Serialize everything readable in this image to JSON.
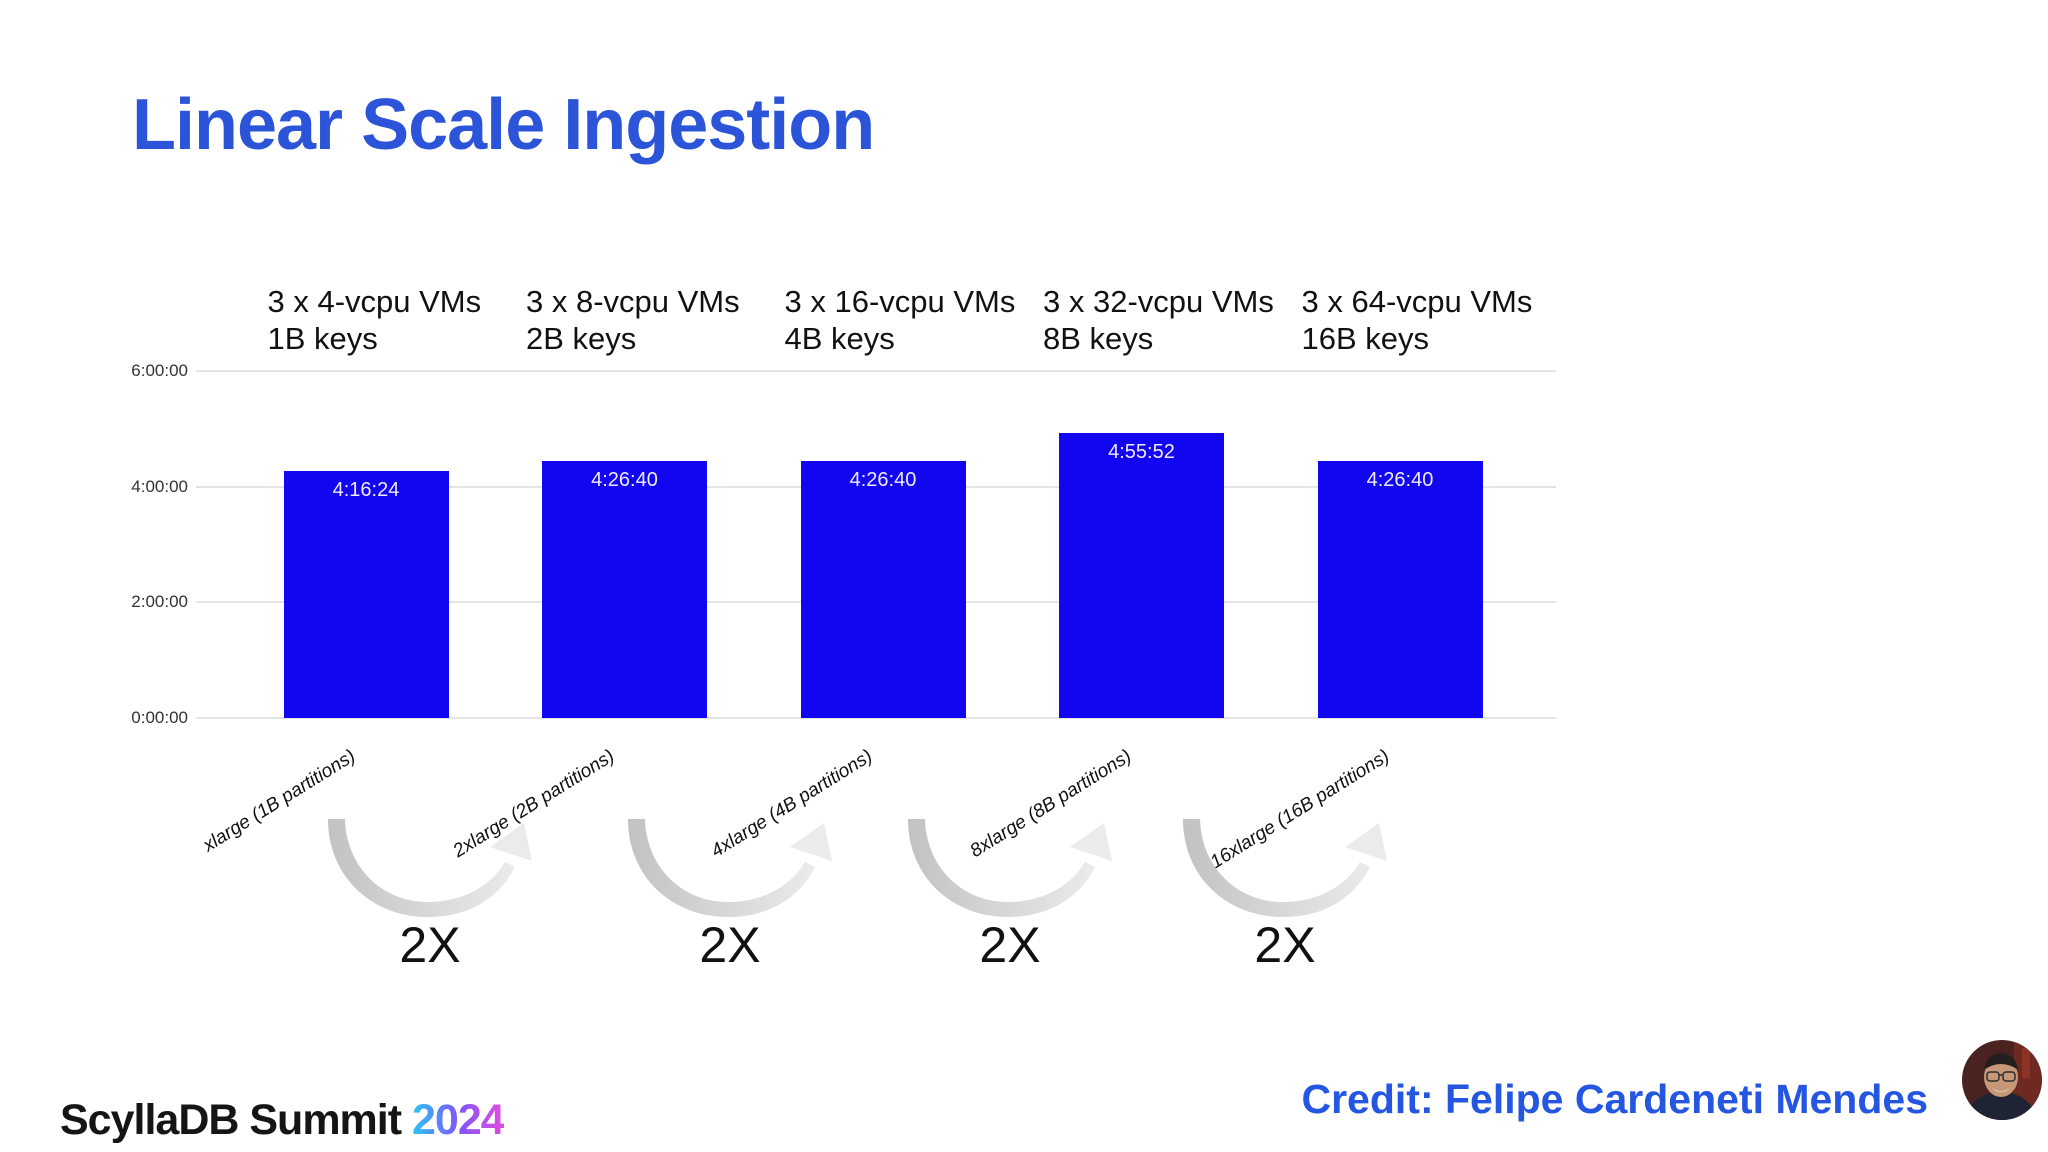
{
  "slide": {
    "title": "Linear Scale Ingestion",
    "credit_label": "Credit: Felipe Cardeneti Mendes",
    "logo": {
      "brand": "ScyllaDB Summit",
      "year": "2024"
    }
  },
  "colors": {
    "title_blue": "#2b54d8",
    "credit_blue": "#2456e2",
    "bar_blue": "#1206f0",
    "grid_gray": "#e4e4e4",
    "axis_text": "#333333",
    "bar_label_text": "#eeeaff",
    "arrow_dark": "#c2c2c2",
    "arrow_light": "#ebebeb",
    "year_gradient": [
      "#2cc5f4",
      "#7e57f8",
      "#e44ae2"
    ]
  },
  "chart_data": {
    "type": "bar",
    "title": "",
    "categories": [
      "xlarge (1B partitions)",
      "2xlarge (2B partitions)",
      "4xlarge (4B partitions)",
      "8xlarge (8B partitions)",
      "16xlarge (16B partitions)"
    ],
    "group_headers": [
      {
        "line1": "3 x 4-vcpu VMs",
        "line2": "1B keys"
      },
      {
        "line1": "3 x 8-vcpu VMs",
        "line2": "2B keys"
      },
      {
        "line1": "3 x 16-vcpu VMs",
        "line2": "4B keys"
      },
      {
        "line1": "3 x 32-vcpu VMs",
        "line2": "8B keys"
      },
      {
        "line1": "3 x 64-vcpu VMs",
        "line2": "16B keys"
      }
    ],
    "values_time": [
      "4:16:24",
      "4:26:40",
      "4:26:40",
      "4:55:52",
      "4:26:40"
    ],
    "values_hours": [
      4.2733,
      4.4444,
      4.4444,
      4.9311,
      4.4444
    ],
    "y_ticks": [
      {
        "label": "6:00:00",
        "hours": 6
      },
      {
        "label": "4:00:00",
        "hours": 4
      },
      {
        "label": "2:00:00",
        "hours": 2
      },
      {
        "label": "0:00:00",
        "hours": 0
      }
    ],
    "ylim": [
      0,
      6
    ],
    "grid": true,
    "legend": "none",
    "scale_arrows": [
      "2X",
      "2X",
      "2X",
      "2X"
    ]
  }
}
